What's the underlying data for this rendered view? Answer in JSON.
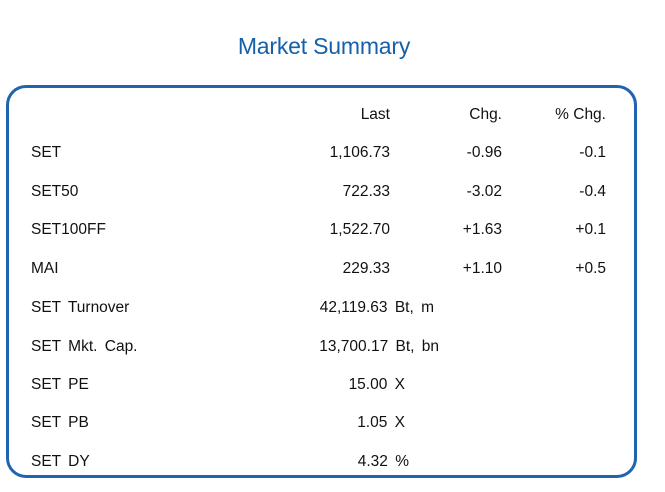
{
  "title": "Market Summary",
  "headers": {
    "last": "Last",
    "chg": "Chg.",
    "pct_chg": "% Chg."
  },
  "indices": [
    {
      "name": "SET",
      "last": "1,106.73",
      "chg": "-0.96",
      "pct_chg": "-0.1"
    },
    {
      "name": "SET50",
      "last": "722.33",
      "chg": "-3.02",
      "pct_chg": "-0.4"
    },
    {
      "name": "SET100FF",
      "last": "1,522.70",
      "chg": "+1.63",
      "pct_chg": "+0.1"
    },
    {
      "name": "MAI",
      "last": "229.33",
      "chg": "+1.10",
      "pct_chg": "+0.5"
    }
  ],
  "stats": [
    {
      "name": "SET Turnover",
      "value": "42,119.63 Bt, m"
    },
    {
      "name": "SET Mkt. Cap.",
      "value": "13,700.17 Bt, bn"
    },
    {
      "name": "SET PE",
      "value": "15.00 X"
    },
    {
      "name": "SET PB",
      "value": "1.05 X"
    },
    {
      "name": "SET DY",
      "value": "4.32 %"
    }
  ],
  "colors": {
    "title": "#1560a8",
    "border": "#1f64b0"
  }
}
